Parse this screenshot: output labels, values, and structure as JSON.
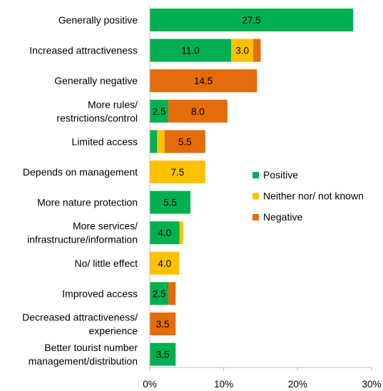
{
  "chart_data": {
    "type": "bar",
    "orientation": "horizontal",
    "stacked": true,
    "categories": [
      [
        "Generally positive"
      ],
      [
        "Increased attractiveness"
      ],
      [
        "Generally negative"
      ],
      [
        "More rules/",
        "restrictions/control"
      ],
      [
        "Limited access"
      ],
      [
        "Depends on management"
      ],
      [
        "More nature protection"
      ],
      [
        "More services/",
        "infrastructure/information"
      ],
      [
        "No/ little effect"
      ],
      [
        "Improved access"
      ],
      [
        "Decreased attractiveness/",
        "experience"
      ],
      [
        "Better tourist number",
        "management/distribution"
      ]
    ],
    "series": [
      {
        "name": "Positive",
        "color": "#00b050",
        "values": [
          27.5,
          11.0,
          0,
          2.5,
          1.0,
          0,
          5.5,
          4.0,
          0,
          2.5,
          0,
          3.5
        ]
      },
      {
        "name": "Neither nor/ not known",
        "color": "#ffc000",
        "values": [
          0,
          3.0,
          0,
          0,
          1.0,
          7.5,
          0,
          0.5,
          4.0,
          0,
          0,
          0
        ]
      },
      {
        "name": "Negative",
        "color": "#e46c0a",
        "values": [
          0,
          1.0,
          14.5,
          8.0,
          5.5,
          0,
          0,
          0,
          0,
          1.0,
          3.5,
          0
        ]
      }
    ],
    "data_labels": [
      {
        "row": 0,
        "series": 0,
        "text": "27.5"
      },
      {
        "row": 1,
        "series": 0,
        "text": "11.0"
      },
      {
        "row": 1,
        "series": 1,
        "text": "3.0"
      },
      {
        "row": 2,
        "series": 2,
        "text": "14.5"
      },
      {
        "row": 3,
        "series": 0,
        "text": "2.5"
      },
      {
        "row": 3,
        "series": 2,
        "text": "8.0"
      },
      {
        "row": 4,
        "series": 2,
        "text": "5.5"
      },
      {
        "row": 5,
        "series": 1,
        "text": "7.5"
      },
      {
        "row": 6,
        "series": 0,
        "text": "5.5"
      },
      {
        "row": 7,
        "series": 0,
        "text": "4.0"
      },
      {
        "row": 8,
        "series": 1,
        "text": "4.0"
      },
      {
        "row": 9,
        "series": 0,
        "text": "2.5"
      },
      {
        "row": 10,
        "series": 2,
        "text": "3.5"
      },
      {
        "row": 11,
        "series": 0,
        "text": "3.5"
      }
    ],
    "xlim": [
      0,
      30
    ],
    "xticks": [
      0,
      10,
      20,
      30
    ],
    "xtick_labels": [
      "0%",
      "10%",
      "20%",
      "30%"
    ],
    "grid": false,
    "legend_position": "right"
  }
}
